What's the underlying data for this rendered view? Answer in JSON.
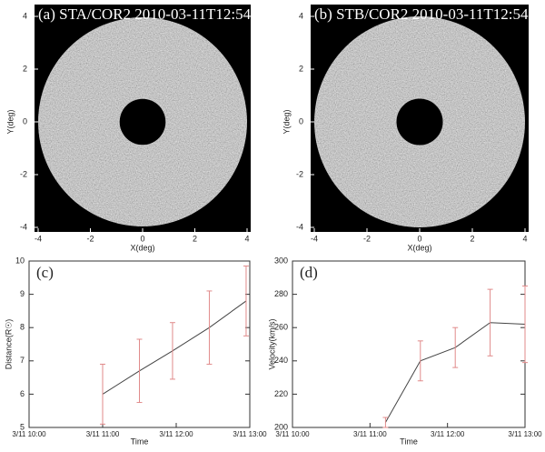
{
  "chart_data": [
    {
      "type": "image",
      "title": "(a) STA/COR2 2010-03-11T12:54",
      "xlabel": "X(deg)",
      "ylabel": "Y(deg)",
      "xlim": [
        -4,
        4
      ],
      "ylim": [
        -4,
        4
      ],
      "xticks": [
        -4,
        -2,
        0,
        2,
        4
      ],
      "yticks": [
        -4,
        -2,
        0,
        2,
        4
      ]
    },
    {
      "type": "image",
      "title": "(b) STB/COR2 2010-03-11T12:54",
      "xlabel": "X(deg)",
      "ylabel": "Y(deg)",
      "xlim": [
        -4,
        4
      ],
      "ylim": [
        -4,
        4
      ],
      "xticks": [
        -4,
        -2,
        0,
        2,
        4
      ],
      "yticks": [
        -4,
        -2,
        0,
        2,
        4
      ]
    },
    {
      "type": "line",
      "title": "(c)",
      "xlabel": "Time",
      "ylabel": "Distance(R☉)",
      "x": [
        11.0,
        11.5,
        11.95,
        12.45,
        12.95
      ],
      "values": [
        6.0,
        6.7,
        7.3,
        8.0,
        8.8
      ],
      "errors": [
        0.9,
        0.95,
        0.85,
        1.1,
        1.05
      ],
      "color": "#444444",
      "error_color": "#e08a8a",
      "xlim": [
        10,
        13
      ],
      "xticks": [
        {
          "value": 10,
          "label": "3/11 10:00"
        },
        {
          "value": 11,
          "label": "3/11 11:00"
        },
        {
          "value": 12,
          "label": "3/11 12:00"
        },
        {
          "value": 13,
          "label": "3/11 13:00"
        }
      ],
      "ylim": [
        5,
        10
      ],
      "yticks": [
        5,
        6,
        7,
        8,
        9,
        10
      ]
    },
    {
      "type": "line",
      "title": "(d)",
      "xlabel": "Time",
      "ylabel": "Velocity(km/s)",
      "x": [
        11.2,
        11.65,
        12.1,
        12.55,
        13.0
      ],
      "values": [
        203,
        240,
        248,
        263,
        262
      ],
      "errors": [
        3,
        12,
        12,
        20,
        23
      ],
      "color": "#444444",
      "error_color": "#e08a8a",
      "xlim": [
        10,
        13
      ],
      "xticks": [
        {
          "value": 10,
          "label": "3/11 10:00"
        },
        {
          "value": 11,
          "label": "3/11 11:00"
        },
        {
          "value": 12,
          "label": "3/11 12:00"
        },
        {
          "value": 13,
          "label": "3/11 13:00"
        }
      ],
      "ylim": [
        200,
        300
      ],
      "yticks": [
        200,
        220,
        240,
        260,
        280,
        300
      ]
    }
  ]
}
